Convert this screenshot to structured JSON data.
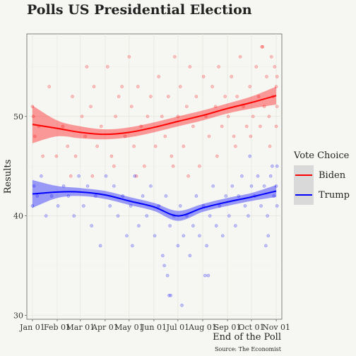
{
  "chart_data": {
    "type": "scatter",
    "title": "Polls US Presidential Election",
    "xlabel": "End of the Poll",
    "ylabel": "Results",
    "caption": "Source: The Economist",
    "x_ticks": [
      "Jan 01",
      "Feb 01",
      "Mar 01",
      "Apr 01",
      "May 01",
      "Jun 01",
      "Jul 01",
      "Aug 01",
      "Sep 01",
      "Oct 01",
      "Nov 01"
    ],
    "y_ticks": [
      30,
      40,
      50
    ],
    "xlim": [
      "2019-12-25",
      "2020-11-08"
    ],
    "ylim": [
      29.6,
      58.3
    ],
    "grid": true,
    "legend": {
      "title": "Vote Choice",
      "position": "right"
    },
    "series": [
      {
        "name": "Biden",
        "color": "#ff0000",
        "trend": [
          {
            "x": "2020-01-01",
            "y": 49.2
          },
          {
            "x": "2020-02-01",
            "y": 48.8
          },
          {
            "x": "2020-03-01",
            "y": 48.4
          },
          {
            "x": "2020-04-01",
            "y": 48.2
          },
          {
            "x": "2020-05-01",
            "y": 48.4
          },
          {
            "x": "2020-06-01",
            "y": 48.9
          },
          {
            "x": "2020-07-01",
            "y": 49.5
          },
          {
            "x": "2020-08-01",
            "y": 50.1
          },
          {
            "x": "2020-09-01",
            "y": 50.8
          },
          {
            "x": "2020-10-01",
            "y": 51.4
          },
          {
            "x": "2020-11-01",
            "y": 52.1
          }
        ],
        "band_halfwidth": [
          1.9,
          0.8,
          0.6,
          0.5,
          0.5,
          0.5,
          0.5,
          0.5,
          0.5,
          0.6,
          0.9
        ],
        "points": [
          [
            "2020-01-01",
            51
          ],
          [
            "2020-01-02",
            50
          ],
          [
            "2020-01-04",
            48
          ],
          [
            "2020-01-09",
            49
          ],
          [
            "2020-01-14",
            46
          ],
          [
            "2020-01-22",
            53
          ],
          [
            "2020-01-31",
            46
          ],
          [
            "2020-02-08",
            49
          ],
          [
            "2020-02-14",
            47
          ],
          [
            "2020-02-20",
            52
          ],
          [
            "2020-02-24",
            46
          ],
          [
            "2020-03-03",
            50
          ],
          [
            "2020-03-07",
            48
          ],
          [
            "2020-03-09",
            55
          ],
          [
            "2020-03-14",
            51
          ],
          [
            "2020-03-18",
            53
          ],
          [
            "2020-03-22",
            47
          ],
          [
            "2020-03-27",
            49
          ],
          [
            "2020-04-04",
            55
          ],
          [
            "2020-04-09",
            46
          ],
          [
            "2020-04-14",
            50
          ],
          [
            "2020-04-18",
            52
          ],
          [
            "2020-04-22",
            53
          ],
          [
            "2020-04-26",
            48
          ],
          [
            "2020-05-01",
            56
          ],
          [
            "2020-05-04",
            51
          ],
          [
            "2020-05-07",
            47
          ],
          [
            "2020-05-12",
            53
          ],
          [
            "2020-05-16",
            49
          ],
          [
            "2020-05-20",
            45
          ],
          [
            "2020-05-24",
            50
          ],
          [
            "2020-05-28",
            52
          ],
          [
            "2020-06-03",
            47
          ],
          [
            "2020-06-07",
            54
          ],
          [
            "2020-06-11",
            50
          ],
          [
            "2020-06-15",
            48
          ],
          [
            "2020-06-19",
            52
          ],
          [
            "2020-06-23",
            46
          ],
          [
            "2020-06-27",
            56
          ],
          [
            "2020-07-01",
            50
          ],
          [
            "2020-07-04",
            53
          ],
          [
            "2020-07-08",
            47
          ],
          [
            "2020-07-12",
            51
          ],
          [
            "2020-07-16",
            55
          ],
          [
            "2020-07-20",
            49
          ],
          [
            "2020-07-24",
            52
          ],
          [
            "2020-07-28",
            45
          ],
          [
            "2020-08-02",
            54
          ],
          [
            "2020-08-05",
            50
          ],
          [
            "2020-08-09",
            48
          ],
          [
            "2020-08-13",
            53
          ],
          [
            "2020-08-17",
            51
          ],
          [
            "2020-08-21",
            55
          ],
          [
            "2020-08-25",
            49
          ],
          [
            "2020-08-29",
            52
          ],
          [
            "2020-09-02",
            50
          ],
          [
            "2020-09-06",
            54
          ],
          [
            "2020-09-09",
            48
          ],
          [
            "2020-09-13",
            52
          ],
          [
            "2020-09-17",
            56
          ],
          [
            "2020-09-21",
            51
          ],
          [
            "2020-09-25",
            49
          ],
          [
            "2020-09-29",
            53
          ],
          [
            "2020-10-03",
            50
          ],
          [
            "2020-10-07",
            55
          ],
          [
            "2020-10-10",
            52
          ],
          [
            "2020-10-14",
            57
          ],
          [
            "2020-10-17",
            51
          ],
          [
            "2020-10-20",
            54
          ],
          [
            "2020-10-23",
            50
          ],
          [
            "2020-10-26",
            56
          ],
          [
            "2020-10-28",
            52
          ],
          [
            "2020-10-30",
            55
          ],
          [
            "2020-11-01",
            53
          ],
          [
            "2020-11-02",
            51
          ],
          [
            "2020-11-02",
            54
          ],
          [
            "2020-10-12",
            49
          ],
          [
            "2020-09-11",
            47
          ],
          [
            "2020-08-19",
            46
          ],
          [
            "2020-07-14",
            44
          ],
          [
            "2020-06-25",
            45
          ],
          [
            "2020-05-10",
            44
          ],
          [
            "2020-04-12",
            45
          ],
          [
            "2020-03-16",
            44
          ],
          [
            "2020-02-18",
            44
          ],
          [
            "2020-10-15",
            57
          ],
          [
            "2020-11-01",
            49
          ],
          [
            "2020-10-24",
            47
          ],
          [
            "2020-09-30",
            48
          ]
        ]
      },
      {
        "name": "Trump",
        "color": "#0000ff",
        "trend": [
          {
            "x": "2020-01-01",
            "y": 42.2
          },
          {
            "x": "2020-02-01",
            "y": 42.4
          },
          {
            "x": "2020-03-01",
            "y": 42.4
          },
          {
            "x": "2020-04-01",
            "y": 42.1
          },
          {
            "x": "2020-05-01",
            "y": 41.5
          },
          {
            "x": "2020-06-01",
            "y": 40.9
          },
          {
            "x": "2020-07-01",
            "y": 40.0
          },
          {
            "x": "2020-08-01",
            "y": 40.8
          },
          {
            "x": "2020-09-01",
            "y": 41.4
          },
          {
            "x": "2020-10-01",
            "y": 41.9
          },
          {
            "x": "2020-11-01",
            "y": 42.5
          }
        ],
        "band_halfwidth": [
          1.4,
          0.6,
          0.4,
          0.4,
          0.4,
          0.4,
          0.5,
          0.4,
          0.4,
          0.4,
          0.6
        ],
        "points": [
          [
            "2020-01-01",
            41
          ],
          [
            "2020-01-03",
            43
          ],
          [
            "2020-01-07",
            42
          ],
          [
            "2020-01-12",
            44
          ],
          [
            "2020-01-18",
            40
          ],
          [
            "2020-01-25",
            42
          ],
          [
            "2020-02-02",
            41
          ],
          [
            "2020-02-09",
            43
          ],
          [
            "2020-02-15",
            42
          ],
          [
            "2020-02-22",
            40
          ],
          [
            "2020-02-28",
            44
          ],
          [
            "2020-03-05",
            41
          ],
          [
            "2020-03-10",
            43
          ],
          [
            "2020-03-15",
            39
          ],
          [
            "2020-03-20",
            42
          ],
          [
            "2020-03-26",
            37
          ],
          [
            "2020-04-02",
            44
          ],
          [
            "2020-04-07",
            41
          ],
          [
            "2020-04-12",
            43
          ],
          [
            "2020-04-17",
            40
          ],
          [
            "2020-04-23",
            42
          ],
          [
            "2020-04-28",
            38
          ],
          [
            "2020-05-03",
            41
          ],
          [
            "2020-05-08",
            44
          ],
          [
            "2020-05-13",
            39
          ],
          [
            "2020-05-18",
            42
          ],
          [
            "2020-05-23",
            40
          ],
          [
            "2020-05-28",
            43
          ],
          [
            "2020-06-02",
            38
          ],
          [
            "2020-06-07",
            41
          ],
          [
            "2020-06-12",
            36
          ],
          [
            "2020-06-16",
            42
          ],
          [
            "2020-06-21",
            39
          ],
          [
            "2020-06-26",
            40
          ],
          [
            "2020-07-01",
            37
          ],
          [
            "2020-07-04",
            41
          ],
          [
            "2020-07-08",
            38
          ],
          [
            "2020-07-12",
            40
          ],
          [
            "2020-07-16",
            36
          ],
          [
            "2020-07-20",
            39
          ],
          [
            "2020-07-24",
            42
          ],
          [
            "2020-07-28",
            38
          ],
          [
            "2020-08-02",
            41
          ],
          [
            "2020-08-06",
            37
          ],
          [
            "2020-08-10",
            40
          ],
          [
            "2020-08-14",
            43
          ],
          [
            "2020-08-18",
            39
          ],
          [
            "2020-08-22",
            41
          ],
          [
            "2020-08-26",
            38
          ],
          [
            "2020-08-30",
            42
          ],
          [
            "2020-09-03",
            40
          ],
          [
            "2020-09-07",
            43
          ],
          [
            "2020-09-11",
            39
          ],
          [
            "2020-09-15",
            42
          ],
          [
            "2020-09-19",
            44
          ],
          [
            "2020-09-23",
            41
          ],
          [
            "2020-09-27",
            40
          ],
          [
            "2020-10-01",
            43
          ],
          [
            "2020-10-05",
            42
          ],
          [
            "2020-10-09",
            44
          ],
          [
            "2020-10-13",
            41
          ],
          [
            "2020-10-17",
            43
          ],
          [
            "2020-10-21",
            40
          ],
          [
            "2020-10-25",
            44
          ],
          [
            "2020-10-29",
            42
          ],
          [
            "2020-11-01",
            43
          ],
          [
            "2020-11-02",
            45
          ],
          [
            "2020-11-02",
            41
          ],
          [
            "2020-06-20",
            32
          ],
          [
            "2020-06-22",
            32
          ],
          [
            "2020-07-06",
            31
          ],
          [
            "2020-06-14",
            35
          ],
          [
            "2020-06-18",
            34
          ],
          [
            "2020-08-04",
            34
          ],
          [
            "2020-08-08",
            34
          ],
          [
            "2020-10-19",
            37
          ],
          [
            "2020-10-22",
            38
          ],
          [
            "2020-09-29",
            46
          ],
          [
            "2020-10-27",
            45
          ],
          [
            "2020-05-05",
            37
          ]
        ]
      }
    ]
  }
}
